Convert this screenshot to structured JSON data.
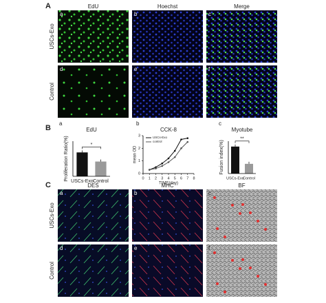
{
  "panel_A": {
    "letter": "A",
    "columns": [
      "EdU",
      "Hoechst",
      "Merge"
    ],
    "rows": [
      "USCs-Exo",
      "Control"
    ],
    "sublabels": [
      "a",
      "b",
      "c",
      "d",
      "e",
      "f"
    ]
  },
  "panel_B": {
    "letter": "B",
    "sublabels": [
      "a",
      "b",
      "c"
    ]
  },
  "chart_data": [
    {
      "type": "bar",
      "title": "EdU",
      "ylabel": "Proliferation Ratio(%)",
      "categories": [
        "USCs-Exo",
        "Control"
      ],
      "values": [
        68,
        42
      ],
      "colors": [
        "#111111",
        "#9a9a9a"
      ],
      "ylim": [
        0,
        100
      ],
      "annotation": "*"
    },
    {
      "type": "line",
      "title": "CCK-8",
      "xlabel": "TIME(day)",
      "ylabel": "mean OD",
      "x": [
        1,
        2,
        3,
        4,
        5,
        6,
        7
      ],
      "series": [
        {
          "name": "USCs-Exo",
          "color": "#111111",
          "values": [
            0.3,
            0.5,
            0.8,
            1.2,
            1.8,
            2.7,
            2.8
          ]
        },
        {
          "name": "control",
          "color": "#555555",
          "values": [
            0.3,
            0.4,
            0.6,
            0.9,
            1.3,
            2.0,
            2.5
          ]
        }
      ],
      "xlim": [
        0,
        8
      ],
      "xticks": [
        0,
        1,
        2,
        3,
        4,
        5,
        6,
        7,
        8
      ],
      "ylim": [
        0,
        3
      ],
      "yticks": [
        0,
        1,
        2,
        3
      ]
    },
    {
      "type": "bar",
      "title": "Myotube",
      "ylabel": "Fusion index(%)",
      "categories": [
        "USCs-Exo",
        "Control"
      ],
      "values": [
        12.5,
        4.5
      ],
      "colors": [
        "#111111",
        "#9a9a9a"
      ],
      "ylim": [
        0,
        15
      ],
      "annotation": "**"
    }
  ],
  "panel_C": {
    "letter": "C",
    "columns": [
      "DES",
      "MHC",
      "BF"
    ],
    "rows": [
      "USCs-Exo",
      "Control"
    ],
    "sublabels": [
      "a",
      "b",
      "c",
      "d",
      "e",
      "f"
    ]
  }
}
